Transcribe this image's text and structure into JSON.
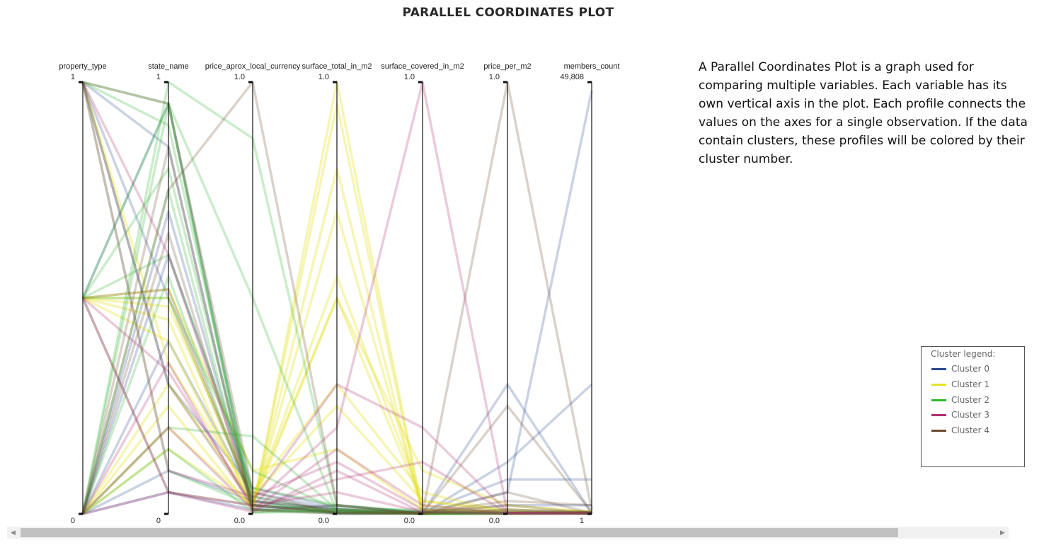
{
  "page": {
    "title": "PARALLEL COORDINATES PLOT",
    "description": "A Parallel Coordinates Plot is a graph used for comparing multiple variables. Each variable has its own vertical axis in the plot. Each profile connects the values on the axes for a single observation. If the data contain clusters, these profiles will be colored by their cluster number."
  },
  "legend": {
    "title": "Cluster legend:",
    "items": [
      {
        "label": "Cluster 0",
        "color": "#2c4a8f"
      },
      {
        "label": "Cluster 1",
        "color": "#e6e22a"
      },
      {
        "label": "Cluster 2",
        "color": "#2fb52f"
      },
      {
        "label": "Cluster 3",
        "color": "#b0306f"
      },
      {
        "label": "Cluster 4",
        "color": "#6b4a2e"
      }
    ]
  },
  "chart_data": {
    "type": "parallel_coordinates",
    "title": "PARALLEL COORDINATES PLOT",
    "axes": [
      {
        "name": "property_type",
        "top": "1",
        "bottom": "0",
        "range": [
          0,
          1
        ]
      },
      {
        "name": "state_name",
        "top": "1",
        "bottom": "0",
        "range": [
          0,
          1
        ]
      },
      {
        "name": "price_aprox_local_currency",
        "top": "1.0",
        "bottom": "0.0",
        "range": [
          0,
          1
        ]
      },
      {
        "name": "surface_total_in_m2",
        "top": "1.0",
        "bottom": "0.0",
        "range": [
          0,
          1
        ]
      },
      {
        "name": "surface_covered_in_m2",
        "top": "1.0",
        "bottom": "0.0",
        "range": [
          0,
          1
        ]
      },
      {
        "name": "price_per_m2",
        "top": "1.0",
        "bottom": "0.0",
        "range": [
          0,
          1
        ]
      },
      {
        "name": "members_count",
        "top": "49,808",
        "bottom": "1",
        "range": [
          1,
          49808
        ]
      }
    ],
    "series": [
      {
        "cluster": 0,
        "values": [
          0,
          0.05,
          0.01,
          0.003,
          0.001,
          0.002,
          0.003
        ]
      },
      {
        "cluster": 0,
        "values": [
          0,
          0.6,
          0.05,
          0.01,
          0.003,
          0.005,
          0.005
        ]
      },
      {
        "cluster": 0,
        "values": [
          0.5,
          0.95,
          0.02,
          0.002,
          0.001,
          0.01,
          0.004
        ]
      },
      {
        "cluster": 0,
        "values": [
          1,
          0.5,
          0.03,
          0.01,
          0.002,
          0.3,
          0.002
        ]
      },
      {
        "cluster": 0,
        "values": [
          1,
          0.85,
          0.01,
          0.02,
          0.003,
          0.05,
          0.98
        ]
      },
      {
        "cluster": 0,
        "values": [
          0,
          0.4,
          0.04,
          0.006,
          0.0,
          0.12,
          0.3
        ]
      },
      {
        "cluster": 0,
        "values": [
          0,
          0.7,
          0.02,
          0.004,
          0.005,
          0.001,
          0.001
        ]
      },
      {
        "cluster": 0,
        "values": [
          1,
          0.3,
          0.06,
          0.015,
          0.004,
          0.08,
          0.08
        ]
      },
      {
        "cluster": 0,
        "values": [
          0,
          0.1,
          0.03,
          0.0,
          0.001,
          0.02,
          0.02
        ]
      },
      {
        "cluster": 1,
        "values": [
          0.5,
          0.45,
          0.01,
          1.0,
          0.005,
          0.003,
          0.002
        ]
      },
      {
        "cluster": 1,
        "values": [
          0,
          0.2,
          0.02,
          0.5,
          0.02,
          0.001,
          0.001
        ]
      },
      {
        "cluster": 1,
        "values": [
          0.5,
          0.5,
          0.03,
          0.5,
          0.1,
          0.02,
          0.005
        ]
      },
      {
        "cluster": 1,
        "values": [
          0,
          0.15,
          0.02,
          0.8,
          0.0,
          0.002,
          0.004
        ]
      },
      {
        "cluster": 1,
        "values": [
          1,
          0.35,
          0.04,
          0.25,
          0.03,
          0.01,
          0.006
        ]
      },
      {
        "cluster": 1,
        "values": [
          0.5,
          0.48,
          0.05,
          0.3,
          0.05,
          0.003,
          0.003
        ]
      },
      {
        "cluster": 1,
        "values": [
          0,
          0.25,
          0.01,
          0.95,
          0.002,
          0.001,
          0.002
        ]
      },
      {
        "cluster": 1,
        "values": [
          0.5,
          0.52,
          0.1,
          0.15,
          0.01,
          0.005,
          0.001
        ]
      },
      {
        "cluster": 1,
        "values": [
          0,
          0.3,
          0.03,
          0.55,
          0.03,
          0.004,
          0.003
        ]
      },
      {
        "cluster": 1,
        "values": [
          0.5,
          0.4,
          0.02,
          0.7,
          0.01,
          0.002,
          0.002
        ]
      },
      {
        "cluster": 2,
        "values": [
          0,
          0.95,
          0.002,
          0.01,
          0.001,
          0.001,
          0.002
        ]
      },
      {
        "cluster": 2,
        "values": [
          0.5,
          0.95,
          0.01,
          0.005,
          0.0,
          0.002,
          0.001
        ]
      },
      {
        "cluster": 2,
        "values": [
          1,
          0.1,
          0.02,
          0.01,
          0.002,
          0.003,
          0.003
        ]
      },
      {
        "cluster": 2,
        "values": [
          0,
          0.15,
          0.005,
          0.003,
          0.001,
          0.001,
          0.001
        ]
      },
      {
        "cluster": 2,
        "values": [
          0.5,
          0.8,
          0.03,
          0.002,
          0.001,
          0.002,
          0.002
        ]
      },
      {
        "cluster": 2,
        "values": [
          0,
          1.0,
          0.87,
          0.02,
          0.003,
          0.001,
          0.001
        ]
      },
      {
        "cluster": 2,
        "values": [
          1,
          0.95,
          0.5,
          0.005,
          0.0,
          0.001,
          0.004
        ]
      },
      {
        "cluster": 2,
        "values": [
          0,
          0.75,
          0.01,
          0.004,
          0.003,
          0.002,
          0.002
        ]
      },
      {
        "cluster": 2,
        "values": [
          0.5,
          0.5,
          0.1,
          0.01,
          0.01,
          0.005,
          0.001
        ]
      },
      {
        "cluster": 2,
        "values": [
          0,
          0.55,
          0.02,
          0.006,
          0.001,
          0.001,
          0.003
        ]
      },
      {
        "cluster": 2,
        "values": [
          1,
          0.9,
          0.04,
          0.003,
          0.002,
          0.002,
          0.002
        ]
      },
      {
        "cluster": 2,
        "values": [
          0,
          0.2,
          0.18,
          0.01,
          0.0,
          0.001,
          0.001
        ]
      },
      {
        "cluster": 2,
        "values": [
          0.5,
          0.6,
          0.06,
          0.02,
          0.005,
          0.003,
          0.003
        ]
      },
      {
        "cluster": 3,
        "values": [
          0,
          0.05,
          0.02,
          0.2,
          1.0,
          0.002,
          0.002
        ]
      },
      {
        "cluster": 3,
        "values": [
          0.5,
          0.05,
          0.005,
          0.1,
          0.003,
          0.001,
          0.001
        ]
      },
      {
        "cluster": 3,
        "values": [
          1,
          0.6,
          0.03,
          0.3,
          0.2,
          0.005,
          0.004
        ]
      },
      {
        "cluster": 3,
        "values": [
          0,
          0.35,
          0.01,
          0.15,
          0.02,
          0.002,
          0.003
        ]
      },
      {
        "cluster": 3,
        "values": [
          0.5,
          0.33,
          0.02,
          0.05,
          0.005,
          0.001,
          0.001
        ]
      },
      {
        "cluster": 3,
        "values": [
          1,
          0.1,
          0.04,
          0.12,
          0.01,
          0.003,
          0.002
        ]
      },
      {
        "cluster": 3,
        "values": [
          0,
          0.2,
          0.01,
          0.08,
          0.12,
          0.002,
          0.001
        ]
      },
      {
        "cluster": 4,
        "values": [
          0,
          0.75,
          1.0,
          0.02,
          0.0,
          0.05,
          0.002
        ]
      },
      {
        "cluster": 4,
        "values": [
          1,
          0.95,
          0.05,
          0.001,
          0.002,
          1.0,
          0.01
        ]
      },
      {
        "cluster": 4,
        "values": [
          0.5,
          0.05,
          0.02,
          0.003,
          0.001,
          0.0,
          0.001
        ]
      },
      {
        "cluster": 4,
        "values": [
          0,
          0.65,
          0.01,
          0.0,
          0.001,
          0.25,
          0.003
        ]
      },
      {
        "cluster": 4,
        "values": [
          0.5,
          0.52,
          0.03,
          0.01,
          0.002,
          0.03,
          0.02
        ]
      },
      {
        "cluster": 4,
        "values": [
          1,
          0.3,
          0.02,
          0.005,
          0.003,
          0.02,
          0.002
        ]
      },
      {
        "cluster": 4,
        "values": [
          0,
          0.85,
          0.005,
          0.02,
          0.0,
          0.01,
          0.001
        ]
      }
    ]
  }
}
